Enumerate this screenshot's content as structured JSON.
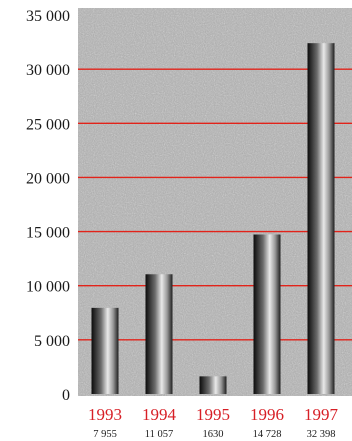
{
  "colors": {
    "gridline": "#e2231a",
    "category_label": "#d71f26",
    "value_label": "#1a1a1a",
    "tick_label": "#1a1a1a",
    "plot_background": "#a9a9a9"
  },
  "chart_data": {
    "type": "bar",
    "title": "",
    "xlabel": "",
    "ylabel": "",
    "categories": [
      "1993",
      "1994",
      "1995",
      "1996",
      "1997"
    ],
    "values": [
      7955,
      11057,
      1630,
      14728,
      32398
    ],
    "value_labels": [
      "7 955",
      "11 057",
      "1630",
      "14 728",
      "32 398"
    ],
    "ylim": [
      0,
      35000
    ],
    "yticks": [
      0,
      5000,
      10000,
      15000,
      20000,
      25000,
      30000,
      35000
    ],
    "ytick_labels": [
      "0",
      "5 000",
      "10 000",
      "15 000",
      "20 000",
      "25 000",
      "30 000",
      "35 000"
    ],
    "grid": true,
    "legend": "none"
  }
}
